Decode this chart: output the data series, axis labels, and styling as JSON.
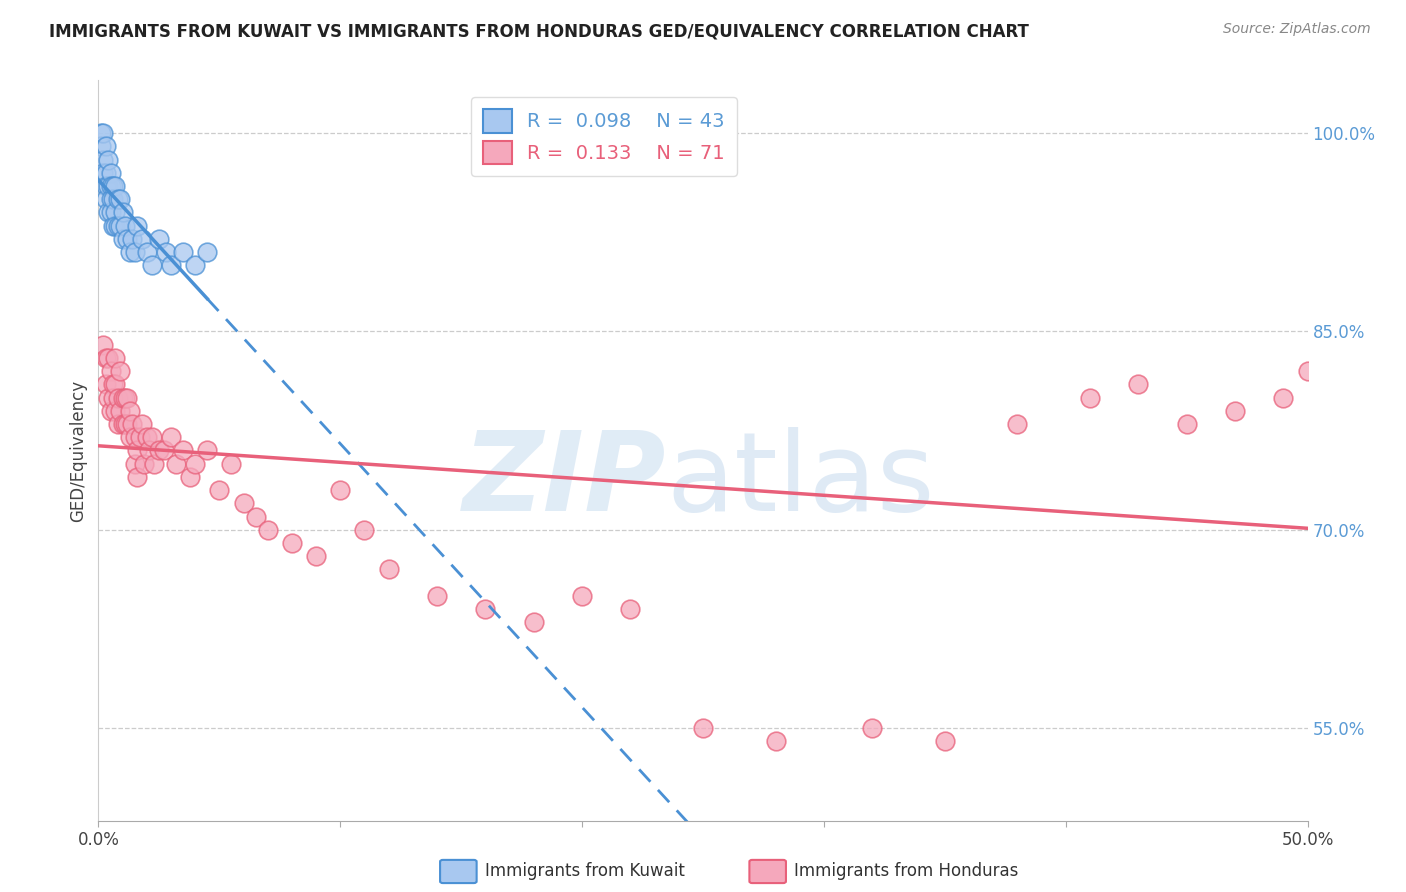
{
  "title": "IMMIGRANTS FROM KUWAIT VS IMMIGRANTS FROM HONDURAS GED/EQUIVALENCY CORRELATION CHART",
  "source": "Source: ZipAtlas.com",
  "ylabel": "GED/Equivalency",
  "xlim": [
    0.0,
    0.5
  ],
  "ylim": [
    0.48,
    1.04
  ],
  "yticks_right": [
    0.55,
    0.7,
    0.85,
    1.0
  ],
  "ytick_labels_right": [
    "55.0%",
    "70.0%",
    "85.0%",
    "100.0%"
  ],
  "kuwait_R": 0.098,
  "kuwait_N": 43,
  "honduras_R": 0.133,
  "honduras_N": 71,
  "kuwait_color": "#a8c8f0",
  "honduras_color": "#f5a8bc",
  "kuwait_line_color": "#4a90d4",
  "honduras_line_color": "#e8607a",
  "axis_label_color": "#5b9bd5",
  "title_fontsize": 12,
  "kuwait_x": [
    0.001,
    0.001,
    0.002,
    0.002,
    0.002,
    0.003,
    0.003,
    0.003,
    0.003,
    0.004,
    0.004,
    0.004,
    0.005,
    0.005,
    0.005,
    0.005,
    0.006,
    0.006,
    0.006,
    0.007,
    0.007,
    0.007,
    0.008,
    0.008,
    0.009,
    0.009,
    0.01,
    0.01,
    0.011,
    0.012,
    0.013,
    0.014,
    0.015,
    0.016,
    0.018,
    0.02,
    0.022,
    0.025,
    0.028,
    0.03,
    0.035,
    0.04,
    0.045
  ],
  "kuwait_y": [
    1.0,
    0.99,
    1.0,
    0.98,
    0.97,
    0.99,
    0.97,
    0.96,
    0.95,
    0.98,
    0.96,
    0.94,
    0.97,
    0.96,
    0.95,
    0.94,
    0.96,
    0.95,
    0.93,
    0.96,
    0.94,
    0.93,
    0.95,
    0.93,
    0.95,
    0.93,
    0.94,
    0.92,
    0.93,
    0.92,
    0.91,
    0.92,
    0.91,
    0.93,
    0.92,
    0.91,
    0.9,
    0.92,
    0.91,
    0.9,
    0.91,
    0.9,
    0.91
  ],
  "honduras_x": [
    0.002,
    0.003,
    0.003,
    0.004,
    0.004,
    0.005,
    0.005,
    0.006,
    0.006,
    0.007,
    0.007,
    0.007,
    0.008,
    0.008,
    0.009,
    0.009,
    0.01,
    0.01,
    0.011,
    0.011,
    0.012,
    0.012,
    0.013,
    0.013,
    0.014,
    0.015,
    0.015,
    0.016,
    0.016,
    0.017,
    0.018,
    0.019,
    0.02,
    0.021,
    0.022,
    0.023,
    0.025,
    0.027,
    0.03,
    0.032,
    0.035,
    0.038,
    0.04,
    0.045,
    0.05,
    0.055,
    0.06,
    0.065,
    0.07,
    0.08,
    0.09,
    0.1,
    0.11,
    0.12,
    0.14,
    0.16,
    0.18,
    0.2,
    0.22,
    0.25,
    0.28,
    0.32,
    0.35,
    0.38,
    0.41,
    0.43,
    0.45,
    0.47,
    0.49,
    0.5,
    0.51
  ],
  "honduras_y": [
    0.84,
    0.83,
    0.81,
    0.83,
    0.8,
    0.82,
    0.79,
    0.81,
    0.8,
    0.83,
    0.81,
    0.79,
    0.8,
    0.78,
    0.82,
    0.79,
    0.8,
    0.78,
    0.8,
    0.78,
    0.8,
    0.78,
    0.79,
    0.77,
    0.78,
    0.77,
    0.75,
    0.76,
    0.74,
    0.77,
    0.78,
    0.75,
    0.77,
    0.76,
    0.77,
    0.75,
    0.76,
    0.76,
    0.77,
    0.75,
    0.76,
    0.74,
    0.75,
    0.76,
    0.73,
    0.75,
    0.72,
    0.71,
    0.7,
    0.69,
    0.68,
    0.73,
    0.7,
    0.67,
    0.65,
    0.64,
    0.63,
    0.65,
    0.64,
    0.55,
    0.54,
    0.55,
    0.54,
    0.78,
    0.8,
    0.81,
    0.78,
    0.79,
    0.8,
    0.82,
    0.81
  ]
}
